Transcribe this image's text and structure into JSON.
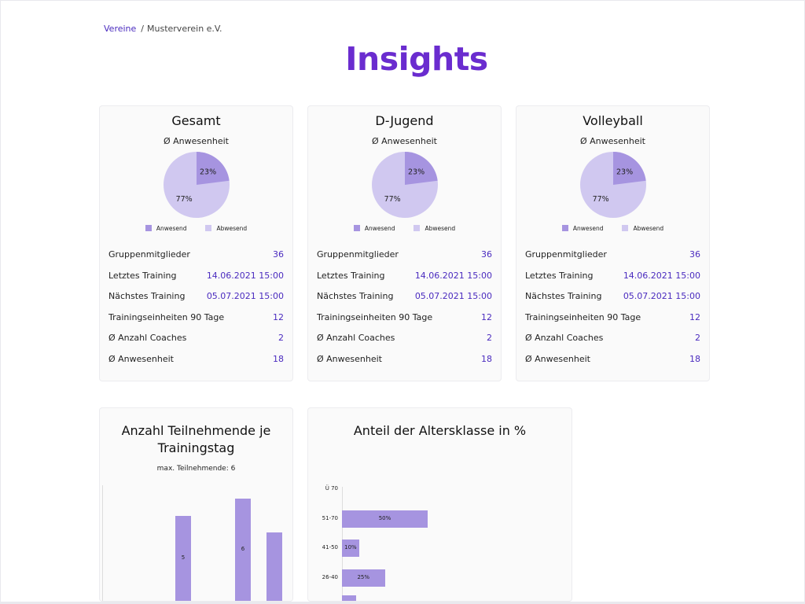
{
  "breadcrumb": {
    "root": "Vereine",
    "separator": "/",
    "current": "Musterverein e.V."
  },
  "title": "Insights",
  "colors": {
    "accent": "#6a2ccf",
    "present": "#a694e0",
    "absent": "#d0c8f0",
    "link": "#4a2bbf"
  },
  "groups": [
    {
      "name": "Gesamt",
      "chart_title": "Ø Anwesenheit",
      "present_pct": 23,
      "absent_pct": 77,
      "present_label": "23%",
      "absent_label": "77%",
      "legend": [
        "Anwesend",
        "Abwesend"
      ],
      "stats": [
        {
          "label": "Gruppenmitglieder",
          "value": "36"
        },
        {
          "label": "Letztes Training",
          "value": "14.06.2021 15:00"
        },
        {
          "label": "Nächstes Training",
          "value": "05.07.2021 15:00"
        },
        {
          "label": "Trainingseinheiten 90 Tage",
          "value": "12"
        },
        {
          "label": "Ø Anzahl Coaches",
          "value": "2"
        },
        {
          "label": "Ø Anwesenheit",
          "value": "18"
        }
      ]
    },
    {
      "name": "D-Jugend",
      "chart_title": "Ø Anwesenheit",
      "present_pct": 23,
      "absent_pct": 77,
      "present_label": "23%",
      "absent_label": "77%",
      "legend": [
        "Anwesend",
        "Abwesend"
      ],
      "stats": [
        {
          "label": "Gruppenmitglieder",
          "value": "36"
        },
        {
          "label": "Letztes Training",
          "value": "14.06.2021 15:00"
        },
        {
          "label": "Nächstes Training",
          "value": "05.07.2021 15:00"
        },
        {
          "label": "Trainingseinheiten 90 Tage",
          "value": "12"
        },
        {
          "label": "Ø Anzahl Coaches",
          "value": "2"
        },
        {
          "label": "Ø Anwesenheit",
          "value": "18"
        }
      ]
    },
    {
      "name": "Volleyball",
      "chart_title": "Ø Anwesenheit",
      "present_pct": 23,
      "absent_pct": 77,
      "present_label": "23%",
      "absent_label": "77%",
      "legend": [
        "Anwesend",
        "Abwesend"
      ],
      "stats": [
        {
          "label": "Gruppenmitglieder",
          "value": "36"
        },
        {
          "label": "Letztes Training",
          "value": "14.06.2021 15:00"
        },
        {
          "label": "Nächstes Training",
          "value": "05.07.2021 15:00"
        },
        {
          "label": "Trainingseinheiten 90 Tage",
          "value": "12"
        },
        {
          "label": "Ø Anzahl Coaches",
          "value": "2"
        },
        {
          "label": "Ø Anwesenheit",
          "value": "18"
        }
      ]
    }
  ],
  "chart_data": [
    {
      "type": "bar",
      "title": "Anzahl Teilnehmende je Trainingstag",
      "subtitle": "max. Teilnehmende: 6",
      "values": [
        null,
        null,
        5,
        null,
        6,
        4
      ],
      "data_labels": [
        "",
        "",
        "5",
        "",
        "6",
        ""
      ]
    },
    {
      "type": "bar",
      "orientation": "horizontal",
      "title": "Anteil der Altersklasse in %",
      "categories": [
        "Ü 70",
        "51-70",
        "41-50",
        "26-40"
      ],
      "values": [
        0,
        50,
        10,
        25
      ],
      "data_labels": [
        "",
        "50%",
        "10%",
        "25%"
      ],
      "xlim": [
        0,
        100
      ]
    }
  ]
}
